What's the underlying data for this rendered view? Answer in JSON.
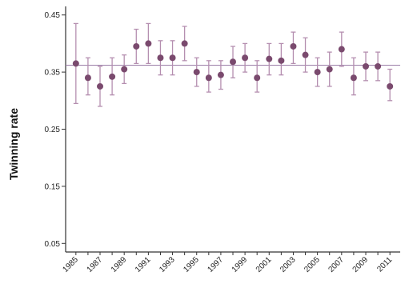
{
  "chart_data": {
    "type": "scatter",
    "title": "",
    "xlabel": "",
    "ylabel": "Twinning rate",
    "ylim": [
      0.035,
      0.465
    ],
    "yticks": [
      0.05,
      0.15,
      0.25,
      0.35,
      0.45
    ],
    "ytick_labels": [
      "0.05",
      "0.15",
      "0.25",
      "0.35",
      "0.45"
    ],
    "xtick_labels": [
      "1985",
      "1987",
      "1989",
      "1991",
      "1993",
      "1995",
      "1997",
      "1999",
      "2001",
      "2003",
      "2005",
      "2007",
      "2009",
      "2011"
    ],
    "x": [
      1985,
      1986,
      1987,
      1988,
      1989,
      1990,
      1991,
      1992,
      1993,
      1994,
      1995,
      1996,
      1997,
      1998,
      1999,
      2000,
      2001,
      2002,
      2003,
      2004,
      2005,
      2006,
      2007,
      2008,
      2009,
      2010,
      2011
    ],
    "series": [
      {
        "values": [
          0.365,
          0.34,
          0.325,
          0.342,
          0.355,
          0.395,
          0.4,
          0.375,
          0.375,
          0.4,
          0.35,
          0.34,
          0.345,
          0.368,
          0.375,
          0.34,
          0.373,
          0.37,
          0.395,
          0.38,
          0.35,
          0.355,
          0.39,
          0.34,
          0.36,
          0.36,
          0.325
        ],
        "lower": [
          0.295,
          0.31,
          0.29,
          0.31,
          0.33,
          0.365,
          0.365,
          0.345,
          0.345,
          0.37,
          0.325,
          0.315,
          0.32,
          0.34,
          0.35,
          0.315,
          0.345,
          0.345,
          0.365,
          0.35,
          0.325,
          0.325,
          0.36,
          0.31,
          0.335,
          0.335,
          0.3
        ],
        "upper": [
          0.435,
          0.375,
          0.36,
          0.375,
          0.38,
          0.425,
          0.435,
          0.405,
          0.405,
          0.43,
          0.375,
          0.37,
          0.37,
          0.395,
          0.4,
          0.37,
          0.4,
          0.4,
          0.42,
          0.41,
          0.375,
          0.385,
          0.42,
          0.375,
          0.385,
          0.385,
          0.355
        ]
      }
    ],
    "reference_line": 0.362,
    "grid": false,
    "colors": {
      "point": "#7a4a6e",
      "errorbar": "#b58fb0",
      "reference": "#9c7fa8",
      "axis": "#333333"
    }
  }
}
